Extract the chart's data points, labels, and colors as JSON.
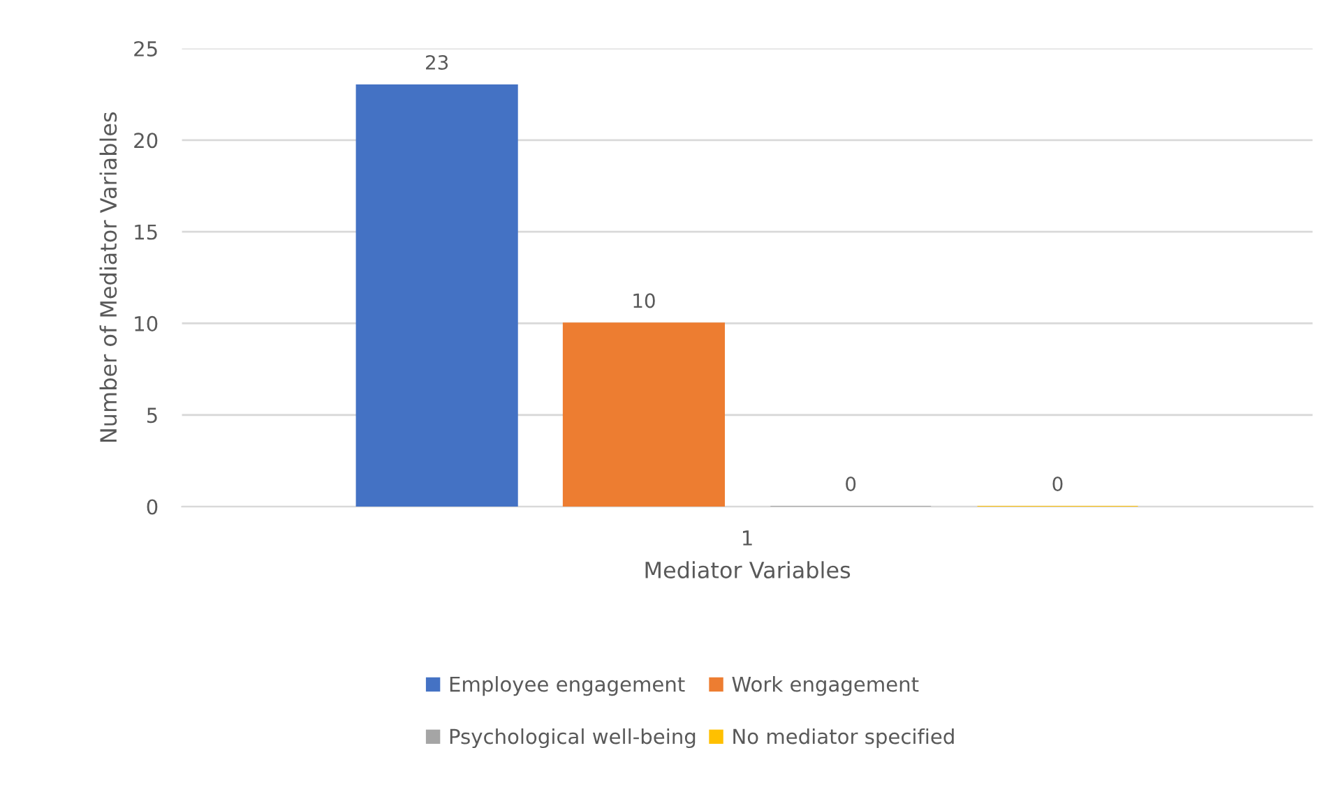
{
  "chart_data": {
    "type": "bar",
    "xlabel": "Mediator Variables",
    "ylabel": "Number of Mediator Variables",
    "categories": [
      "1"
    ],
    "series": [
      {
        "name": "Employee engagement",
        "color": "#4472c4",
        "values": [
          23
        ]
      },
      {
        "name": "Work engagement",
        "color": "#ed7d31",
        "values": [
          10
        ]
      },
      {
        "name": "Psychological well-being",
        "color": "#a5a5a5",
        "values": [
          0
        ]
      },
      {
        "name": "No mediator specified",
        "color": "#ffc000",
        "values": [
          0
        ]
      }
    ],
    "ylim": [
      0,
      25
    ],
    "yticks": [
      0,
      5,
      10,
      15,
      20,
      25
    ],
    "grid": "y",
    "legend": "bottom",
    "data_labels": true
  }
}
